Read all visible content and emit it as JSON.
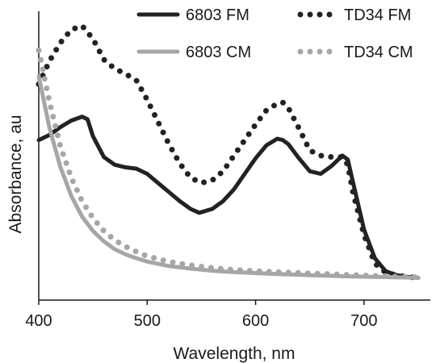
{
  "chart_data": {
    "type": "line",
    "title": "",
    "xlabel": "Wavelength, nm",
    "ylabel": "Absorbance, au",
    "xlim": [
      400,
      750
    ],
    "ylim": [
      0,
      1
    ],
    "x_ticks": [
      "400",
      "500",
      "600",
      "700"
    ],
    "y_tick_labels_shown": false,
    "grid": false,
    "legend_position": "top-right",
    "series": [
      {
        "name": "6803 FM",
        "style": "solid",
        "color": "#222222",
        "points": [
          [
            400,
            0.585
          ],
          [
            410,
            0.605
          ],
          [
            420,
            0.635
          ],
          [
            430,
            0.66
          ],
          [
            440,
            0.675
          ],
          [
            445,
            0.665
          ],
          [
            450,
            0.6
          ],
          [
            460,
            0.52
          ],
          [
            470,
            0.49
          ],
          [
            480,
            0.48
          ],
          [
            490,
            0.475
          ],
          [
            500,
            0.455
          ],
          [
            510,
            0.42
          ],
          [
            520,
            0.385
          ],
          [
            530,
            0.35
          ],
          [
            540,
            0.32
          ],
          [
            548,
            0.305
          ],
          [
            560,
            0.32
          ],
          [
            570,
            0.35
          ],
          [
            580,
            0.395
          ],
          [
            590,
            0.455
          ],
          [
            600,
            0.515
          ],
          [
            610,
            0.565
          ],
          [
            620,
            0.59
          ],
          [
            625,
            0.585
          ],
          [
            630,
            0.57
          ],
          [
            640,
            0.515
          ],
          [
            650,
            0.465
          ],
          [
            660,
            0.455
          ],
          [
            670,
            0.485
          ],
          [
            680,
            0.525
          ],
          [
            685,
            0.51
          ],
          [
            690,
            0.42
          ],
          [
            700,
            0.24
          ],
          [
            710,
            0.13
          ],
          [
            720,
            0.08
          ],
          [
            730,
            0.065
          ],
          [
            740,
            0.058
          ],
          [
            750,
            0.055
          ]
        ]
      },
      {
        "name": "TD34 FM",
        "style": "dotted",
        "color": "#222222",
        "points": [
          [
            400,
            0.8
          ],
          [
            410,
            0.89
          ],
          [
            420,
            0.96
          ],
          [
            430,
            1.01
          ],
          [
            440,
            1.025
          ],
          [
            450,
            0.975
          ],
          [
            460,
            0.895
          ],
          [
            470,
            0.86
          ],
          [
            480,
            0.84
          ],
          [
            490,
            0.815
          ],
          [
            500,
            0.74
          ],
          [
            510,
            0.655
          ],
          [
            520,
            0.57
          ],
          [
            530,
            0.495
          ],
          [
            540,
            0.44
          ],
          [
            550,
            0.42
          ],
          [
            560,
            0.43
          ],
          [
            570,
            0.465
          ],
          [
            580,
            0.525
          ],
          [
            590,
            0.585
          ],
          [
            600,
            0.645
          ],
          [
            610,
            0.7
          ],
          [
            620,
            0.725
          ],
          [
            625,
            0.73
          ],
          [
            630,
            0.71
          ],
          [
            640,
            0.63
          ],
          [
            650,
            0.545
          ],
          [
            660,
            0.525
          ],
          [
            670,
            0.52
          ],
          [
            680,
            0.52
          ],
          [
            685,
            0.49
          ],
          [
            690,
            0.38
          ],
          [
            700,
            0.22
          ],
          [
            710,
            0.11
          ],
          [
            720,
            0.075
          ],
          [
            730,
            0.065
          ],
          [
            740,
            0.058
          ],
          [
            750,
            0.055
          ]
        ]
      },
      {
        "name": "6803 CM",
        "style": "solid",
        "color": "#a6a6a6",
        "points": [
          [
            400,
            0.83
          ],
          [
            410,
            0.63
          ],
          [
            420,
            0.48
          ],
          [
            430,
            0.37
          ],
          [
            440,
            0.29
          ],
          [
            450,
            0.235
          ],
          [
            460,
            0.195
          ],
          [
            470,
            0.165
          ],
          [
            480,
            0.145
          ],
          [
            490,
            0.13
          ],
          [
            500,
            0.117
          ],
          [
            520,
            0.1
          ],
          [
            540,
            0.09
          ],
          [
            560,
            0.082
          ],
          [
            580,
            0.077
          ],
          [
            600,
            0.073
          ],
          [
            620,
            0.069
          ],
          [
            650,
            0.065
          ],
          [
            680,
            0.061
          ],
          [
            700,
            0.059
          ],
          [
            725,
            0.057
          ],
          [
            750,
            0.055
          ]
        ]
      },
      {
        "name": "TD34 CM",
        "style": "dotted",
        "color": "#a6a6a6",
        "points": [
          [
            400,
            0.93
          ],
          [
            410,
            0.73
          ],
          [
            420,
            0.56
          ],
          [
            430,
            0.44
          ],
          [
            440,
            0.35
          ],
          [
            450,
            0.285
          ],
          [
            460,
            0.235
          ],
          [
            470,
            0.2
          ],
          [
            480,
            0.175
          ],
          [
            490,
            0.155
          ],
          [
            500,
            0.138
          ],
          [
            520,
            0.117
          ],
          [
            540,
            0.103
          ],
          [
            560,
            0.093
          ],
          [
            580,
            0.086
          ],
          [
            600,
            0.081
          ],
          [
            620,
            0.077
          ],
          [
            650,
            0.072
          ],
          [
            680,
            0.067
          ],
          [
            700,
            0.064
          ],
          [
            725,
            0.06
          ],
          [
            750,
            0.057
          ]
        ]
      }
    ]
  }
}
